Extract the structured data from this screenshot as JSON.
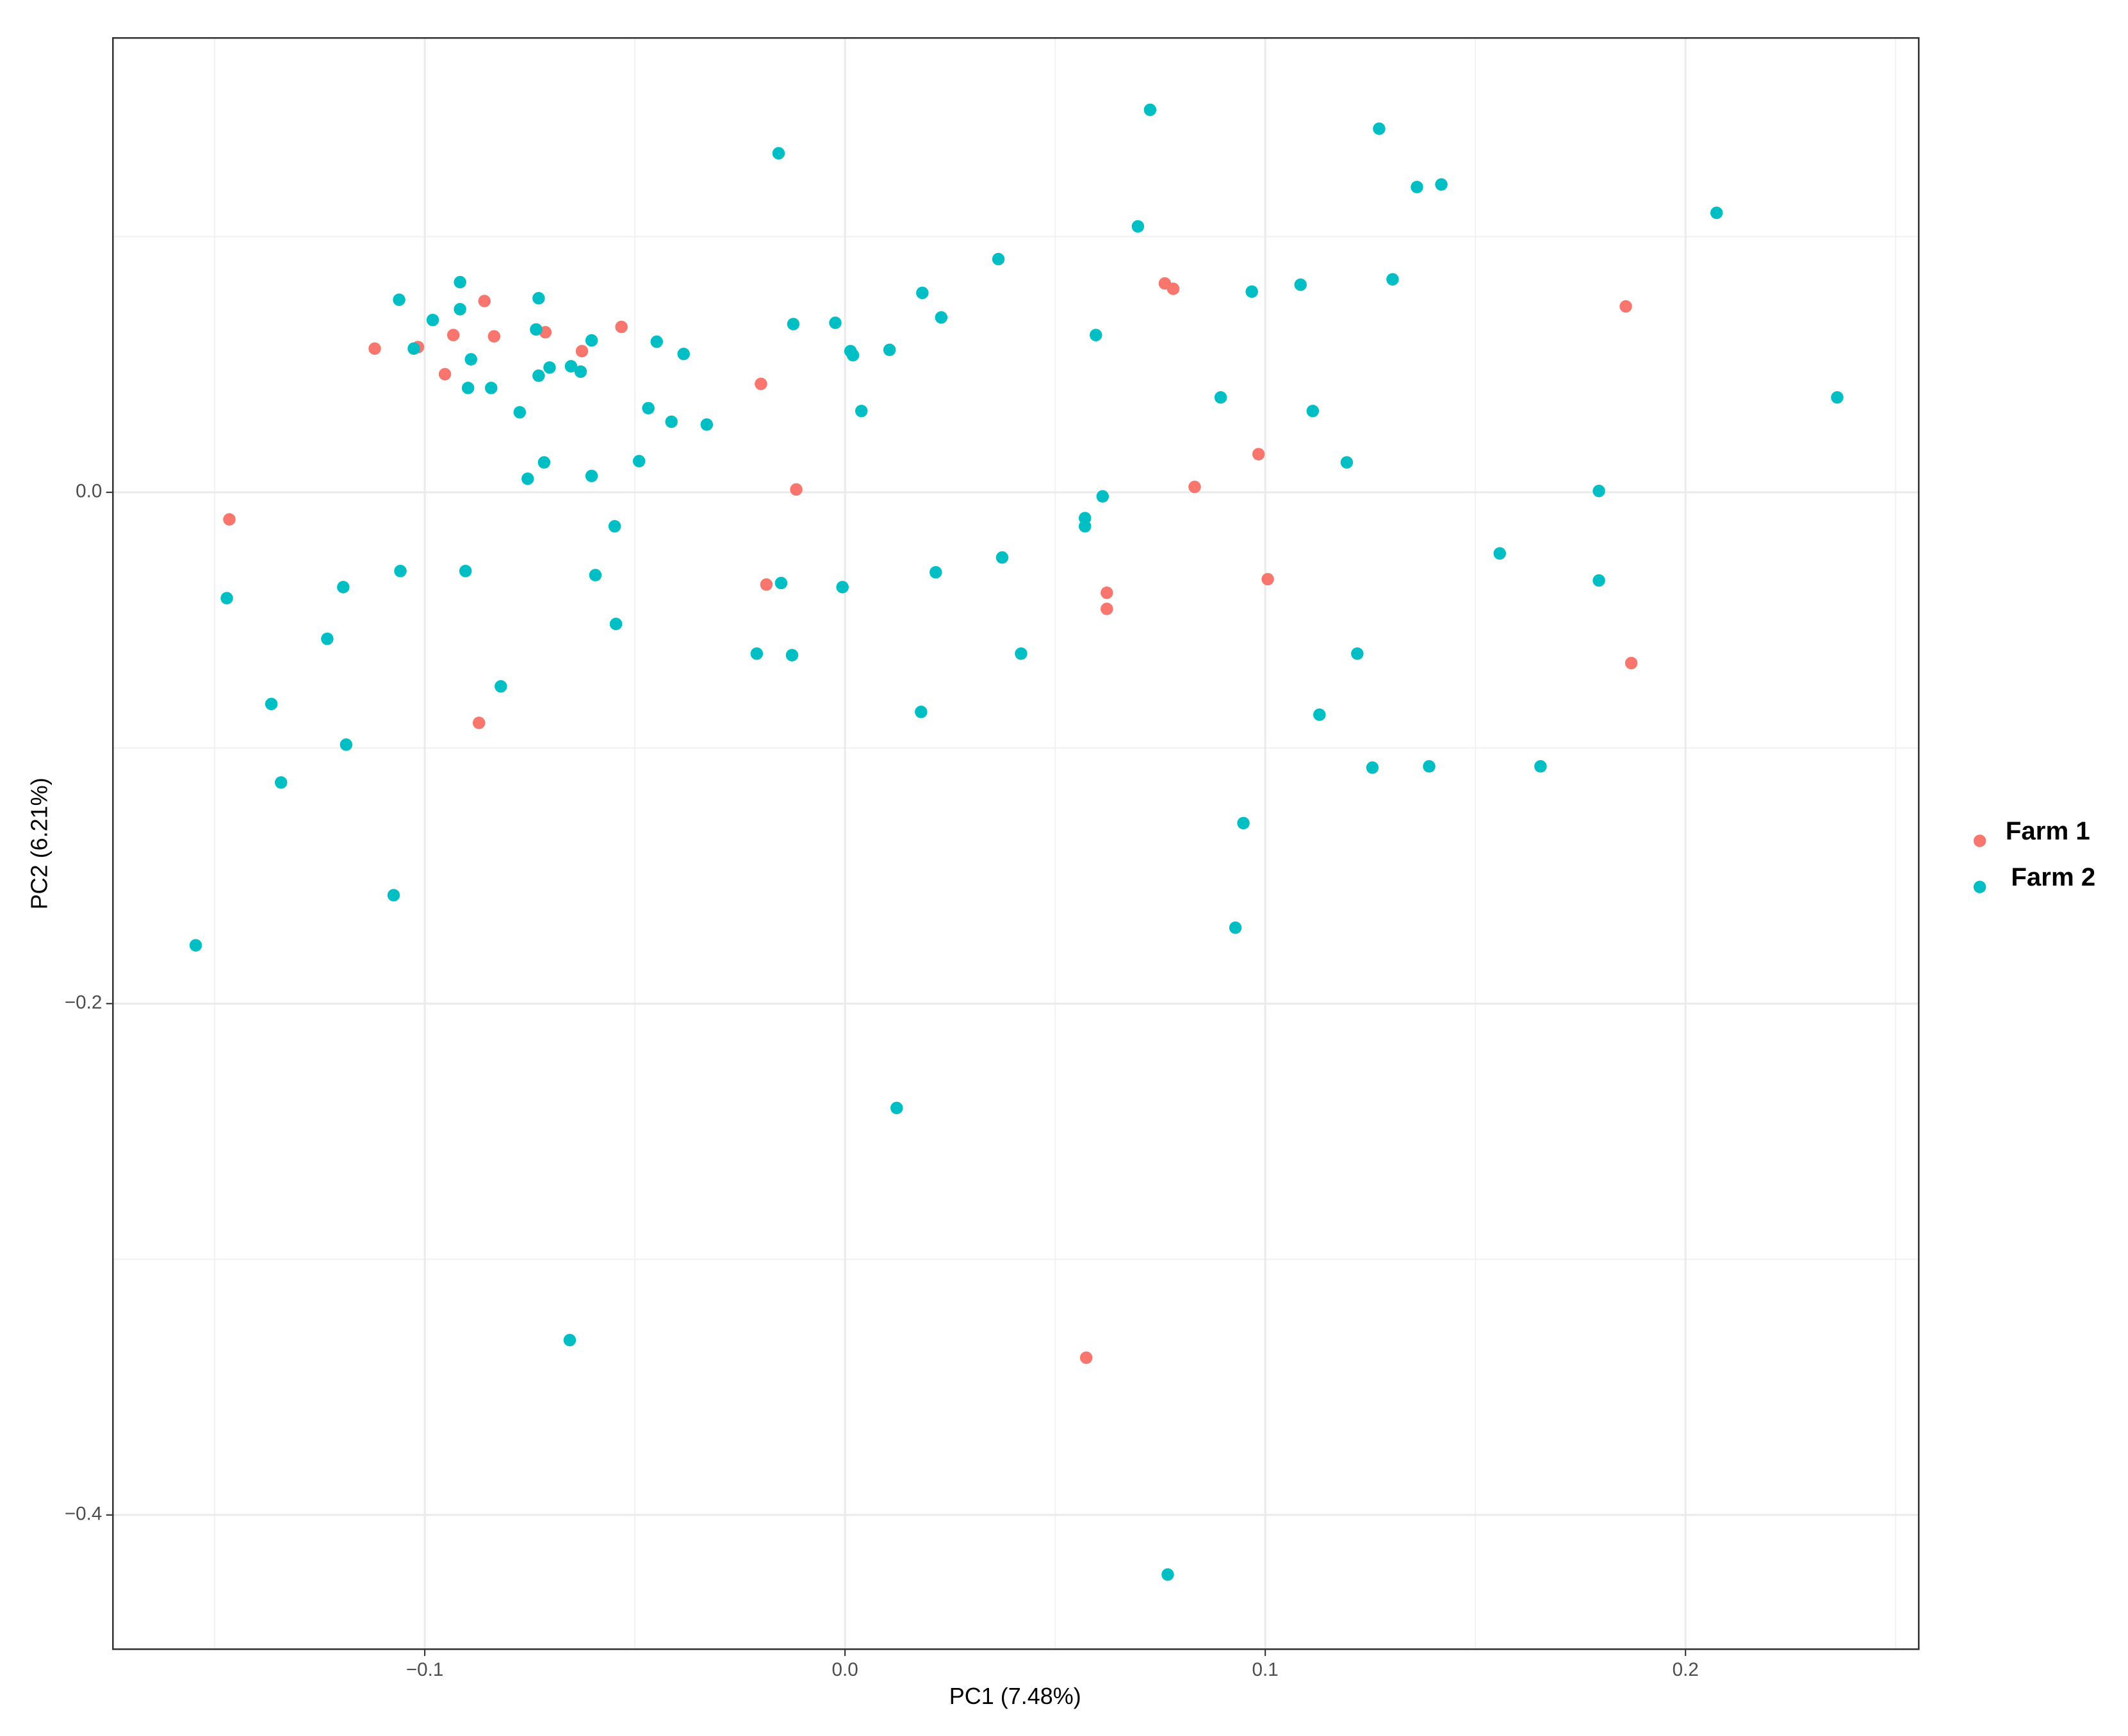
{
  "chart_data": {
    "type": "scatter",
    "x_label": "PC1 (7.48%)",
    "y_label": "PC2 (6.21%)",
    "xlim": [
      -0.1742,
      0.2555
    ],
    "ylim": [
      -0.4525,
      0.1777
    ],
    "xticks": [
      {
        "value": -0.1,
        "label": "−0.1"
      },
      {
        "value": 0,
        "label": "0.0"
      },
      0.1,
      0.2
    ],
    "yticks": [
      {
        "value": -0.4,
        "label": "−0.4"
      },
      {
        "value": -0.2,
        "label": "−0.2"
      },
      {
        "value": 0,
        "label": "0.0"
      }
    ],
    "grid": true,
    "minor_grid": true,
    "legend_position": "right",
    "series": [
      {
        "name": "Farm 1",
        "color": "#F8766D",
        "x": [
          -0.1465,
          -0.1119,
          -0.1016,
          -0.0952,
          -0.0932,
          -0.0858,
          -0.0835,
          -0.0871,
          -0.0713,
          -0.0626,
          -0.0532,
          -0.02,
          -0.0116,
          -0.0187,
          0.0623,
          0.0623,
          0.0761,
          0.0781,
          0.0832,
          0.0984,
          0.1006,
          0.1858,
          0.1871,
          0.0574
        ],
        "values": [
          -0.0106,
          0.0562,
          0.0568,
          0.0462,
          0.0615,
          0.0748,
          0.061,
          -0.0902,
          0.0626,
          0.0552,
          0.0647,
          0.0424,
          0.0011,
          -0.0361,
          -0.0393,
          -0.0456,
          0.0817,
          0.0796,
          0.0021,
          0.0149,
          -0.034,
          0.0727,
          -0.0668,
          -0.3385
        ]
      },
      {
        "name": "Farm 2",
        "color": "#00BFC4",
        "x": [
          -0.1545,
          -0.1471,
          -0.1365,
          -0.1342,
          -0.1232,
          -0.1194,
          -0.1187,
          -0.1074,
          -0.1058,
          -0.1061,
          -0.1026,
          -0.0981,
          -0.0916,
          -0.0916,
          -0.089,
          -0.0903,
          -0.0897,
          -0.0842,
          -0.0819,
          -0.0774,
          -0.0755,
          -0.0735,
          -0.0729,
          -0.0729,
          -0.0716,
          -0.0703,
          -0.0652,
          -0.0629,
          -0.0603,
          -0.0603,
          -0.0594,
          -0.0655,
          -0.0548,
          -0.0545,
          -0.049,
          -0.0468,
          -0.0448,
          -0.0413,
          -0.0384,
          -0.0329,
          -0.0158,
          -0.021,
          -0.0152,
          -0.0126,
          -0.0123,
          -0.0023,
          -0.0006,
          0.0013,
          0.0019,
          0.0039,
          0.0106,
          0.0123,
          0.0184,
          0.0181,
          0.0216,
          0.0229,
          0.0365,
          0.0374,
          0.0419,
          0.0571,
          0.0571,
          0.0597,
          0.0613,
          0.0697,
          0.0726,
          0.0768,
          0.0894,
          0.0929,
          0.0948,
          0.0968,
          0.1084,
          0.1113,
          0.1129,
          0.1194,
          0.1219,
          0.1255,
          0.1271,
          0.1303,
          0.1361,
          0.139,
          0.1419,
          0.1558,
          0.1655,
          0.1794,
          0.1794,
          0.2074,
          0.2361
        ],
        "values": [
          -0.1772,
          -0.0414,
          -0.0828,
          -0.1135,
          -0.0573,
          -0.0371,
          -0.0987,
          -0.1576,
          -0.0308,
          0.0753,
          0.0562,
          0.0674,
          0.0822,
          0.0716,
          0.052,
          -0.0308,
          0.0408,
          0.0408,
          -0.0759,
          0.0313,
          0.0053,
          0.0637,
          0.0759,
          0.0456,
          0.0117,
          0.0488,
          0.0493,
          0.0472,
          0.0594,
          0.0064,
          -0.0324,
          -0.3316,
          -0.0133,
          -0.0515,
          0.0122,
          0.0329,
          0.0589,
          0.0276,
          0.0541,
          0.0265,
          0.1326,
          -0.0631,
          -0.0355,
          -0.0637,
          0.0658,
          0.0663,
          -0.0371,
          0.0552,
          0.0536,
          0.0318,
          0.0557,
          -0.2408,
          0.078,
          -0.0859,
          -0.0313,
          0.0684,
          0.0912,
          -0.0255,
          -0.0631,
          -0.0101,
          -0.0133,
          0.0615,
          -0.0016,
          0.104,
          0.1496,
          -0.4233,
          0.0371,
          -0.1703,
          -0.1294,
          0.0785,
          0.0812,
          0.0318,
          -0.087,
          0.0117,
          -0.0631,
          -0.1077,
          0.1422,
          0.0833,
          0.1194,
          -0.1072,
          0.1204,
          -0.0239,
          -0.1072,
          0.0005,
          -0.0345,
          0.1093,
          0.0371
        ]
      }
    ]
  }
}
